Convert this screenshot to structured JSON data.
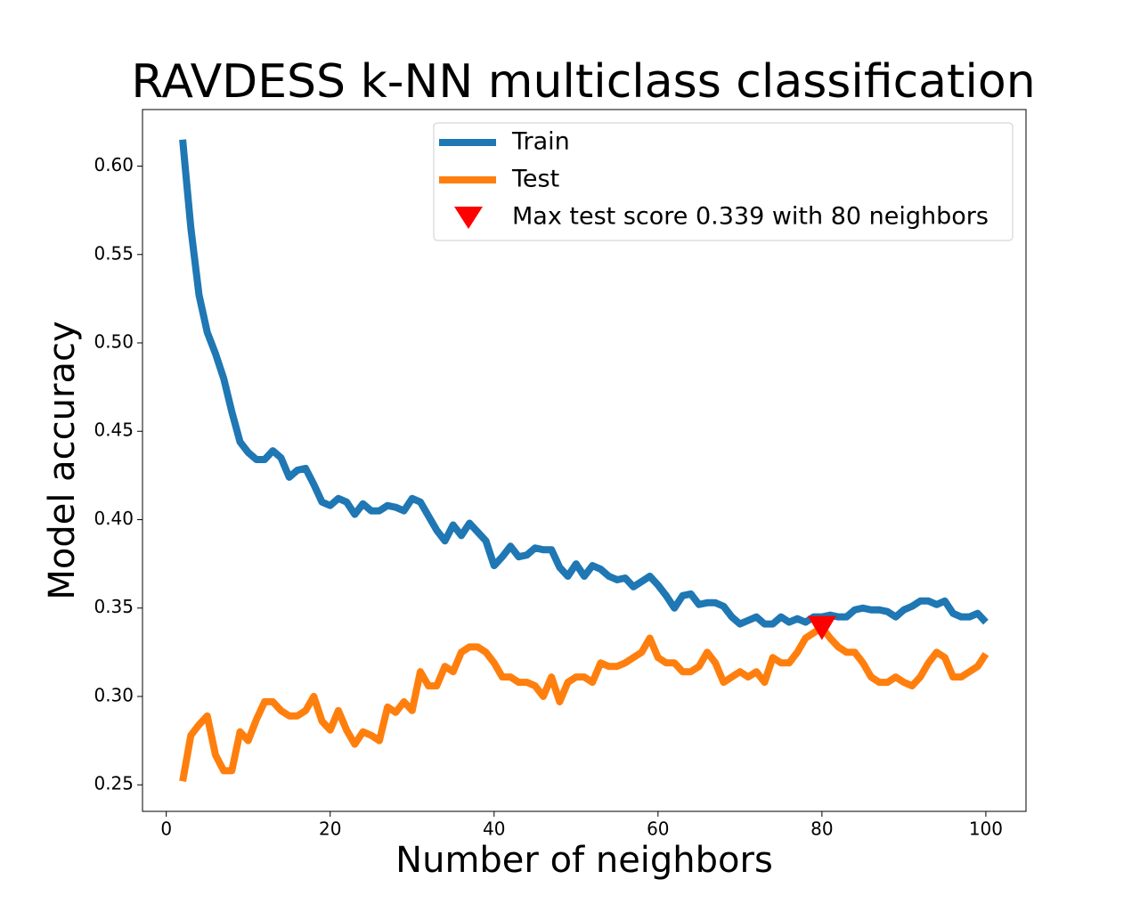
{
  "chart_data": {
    "type": "line",
    "title": "RAVDESS k-NN multiclass classification",
    "xlabel": "Number of neighbors",
    "ylabel": "Model accuracy",
    "x": [
      2,
      3,
      4,
      5,
      6,
      7,
      8,
      9,
      10,
      11,
      12,
      13,
      14,
      15,
      16,
      17,
      18,
      19,
      20,
      21,
      22,
      23,
      24,
      25,
      26,
      27,
      28,
      29,
      30,
      31,
      32,
      33,
      34,
      35,
      36,
      37,
      38,
      39,
      40,
      41,
      42,
      43,
      44,
      45,
      46,
      47,
      48,
      49,
      50,
      51,
      52,
      53,
      54,
      55,
      56,
      57,
      58,
      59,
      60,
      61,
      62,
      63,
      64,
      65,
      66,
      67,
      68,
      69,
      70,
      71,
      72,
      73,
      74,
      75,
      76,
      77,
      78,
      79,
      80,
      81,
      82,
      83,
      84,
      85,
      86,
      87,
      88,
      89,
      90,
      91,
      92,
      93,
      94,
      95,
      96,
      97,
      98,
      99,
      100
    ],
    "series": [
      {
        "name": "Train",
        "color": "#1f77b4",
        "values": [
          0.615,
          0.565,
          0.527,
          0.506,
          0.494,
          0.48,
          0.461,
          0.444,
          0.438,
          0.434,
          0.434,
          0.439,
          0.435,
          0.424,
          0.428,
          0.429,
          0.42,
          0.41,
          0.408,
          0.412,
          0.41,
          0.403,
          0.409,
          0.405,
          0.405,
          0.408,
          0.407,
          0.405,
          0.412,
          0.41,
          0.402,
          0.394,
          0.388,
          0.397,
          0.391,
          0.398,
          0.393,
          0.388,
          0.374,
          0.379,
          0.385,
          0.379,
          0.38,
          0.384,
          0.383,
          0.383,
          0.373,
          0.368,
          0.375,
          0.368,
          0.374,
          0.372,
          0.368,
          0.366,
          0.367,
          0.362,
          0.365,
          0.368,
          0.363,
          0.357,
          0.35,
          0.357,
          0.358,
          0.352,
          0.353,
          0.353,
          0.351,
          0.345,
          0.341,
          0.343,
          0.345,
          0.341,
          0.341,
          0.345,
          0.342,
          0.344,
          0.342,
          0.345,
          0.345,
          0.346,
          0.345,
          0.345,
          0.349,
          0.35,
          0.349,
          0.349,
          0.348,
          0.345,
          0.349,
          0.351,
          0.354,
          0.354,
          0.352,
          0.354,
          0.347,
          0.345,
          0.345,
          0.347,
          0.342
        ]
      },
      {
        "name": "Test",
        "color": "#ff7f0e",
        "values": [
          0.252,
          0.278,
          0.284,
          0.289,
          0.267,
          0.258,
          0.258,
          0.28,
          0.275,
          0.287,
          0.297,
          0.297,
          0.292,
          0.289,
          0.289,
          0.292,
          0.3,
          0.286,
          0.281,
          0.292,
          0.281,
          0.273,
          0.28,
          0.278,
          0.275,
          0.294,
          0.291,
          0.297,
          0.292,
          0.314,
          0.306,
          0.306,
          0.317,
          0.314,
          0.325,
          0.328,
          0.328,
          0.325,
          0.319,
          0.311,
          0.311,
          0.308,
          0.308,
          0.306,
          0.3,
          0.311,
          0.297,
          0.308,
          0.311,
          0.311,
          0.308,
          0.319,
          0.317,
          0.317,
          0.319,
          0.322,
          0.325,
          0.333,
          0.322,
          0.319,
          0.319,
          0.314,
          0.314,
          0.317,
          0.325,
          0.319,
          0.308,
          0.311,
          0.314,
          0.311,
          0.314,
          0.308,
          0.322,
          0.319,
          0.319,
          0.325,
          0.333,
          0.336,
          0.339,
          0.333,
          0.328,
          0.325,
          0.325,
          0.319,
          0.311,
          0.308,
          0.308,
          0.311,
          0.308,
          0.306,
          0.311,
          0.319,
          0.325,
          0.322,
          0.311,
          0.311,
          0.314,
          0.317,
          0.324
        ]
      }
    ],
    "marker": {
      "name": "Max test score 0.339 with 80 neighbors",
      "color": "#ff0000",
      "x": [
        80
      ],
      "values": [
        0.339
      ]
    },
    "xlim": [
      -2.9,
      104.9
    ],
    "ylim": [
      0.235,
      0.632
    ],
    "xticks": [
      0,
      20,
      40,
      60,
      80,
      100
    ],
    "yticks": [
      0.25,
      {
        "value": 0.3,
        "label": "0.30"
      },
      0.35,
      {
        "value": 0.4,
        "label": "0.40"
      },
      0.45,
      {
        "value": 0.5,
        "label": "0.50"
      },
      0.55,
      {
        "value": 0.6,
        "label": "0.60"
      }
    ],
    "legend": "upper right",
    "grid": false
  }
}
